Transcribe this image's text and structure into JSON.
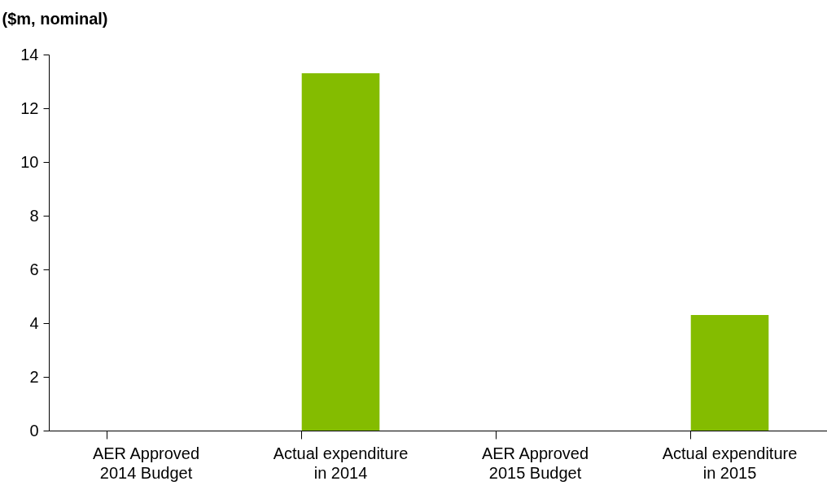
{
  "chart_data": {
    "type": "bar",
    "ylabel": "($m, nominal)",
    "categories": [
      "AER Approved 2014 Budget",
      "Actual expenditure in 2014",
      "AER Approved 2015 Budget",
      "Actual expenditure in 2015"
    ],
    "values": [
      null,
      13.3,
      null,
      4.3
    ],
    "color": "#84bc00",
    "ylim": [
      0,
      14
    ],
    "yticks": [
      0,
      2,
      4,
      6,
      8,
      10,
      12,
      14
    ],
    "grid": false
  }
}
